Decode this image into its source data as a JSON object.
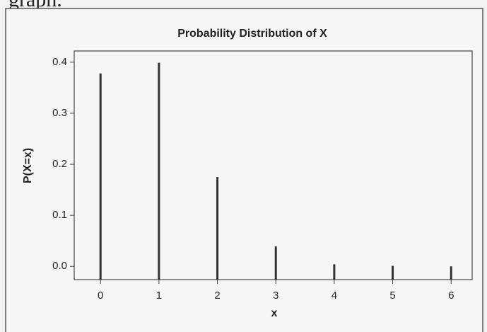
{
  "page_text": "graph.",
  "chart_data": {
    "type": "stem",
    "title": "Probability Distribution of X",
    "x_label": "x",
    "y_label": "P(X=x)",
    "x": [
      0,
      1,
      2,
      3,
      4,
      5,
      6
    ],
    "values": [
      0.378,
      0.399,
      0.175,
      0.039,
      0.004,
      0.001,
      0.0
    ],
    "color": "#333333",
    "xlim": [
      -0.45,
      6.36
    ],
    "xticks": [
      0,
      1,
      2,
      3,
      4,
      5,
      6
    ],
    "ylim": [
      -0.026,
      0.422
    ],
    "yticks": [
      {
        "value": 0,
        "label": "0.0"
      },
      0.1,
      0.2,
      0.3,
      0.4
    ]
  }
}
